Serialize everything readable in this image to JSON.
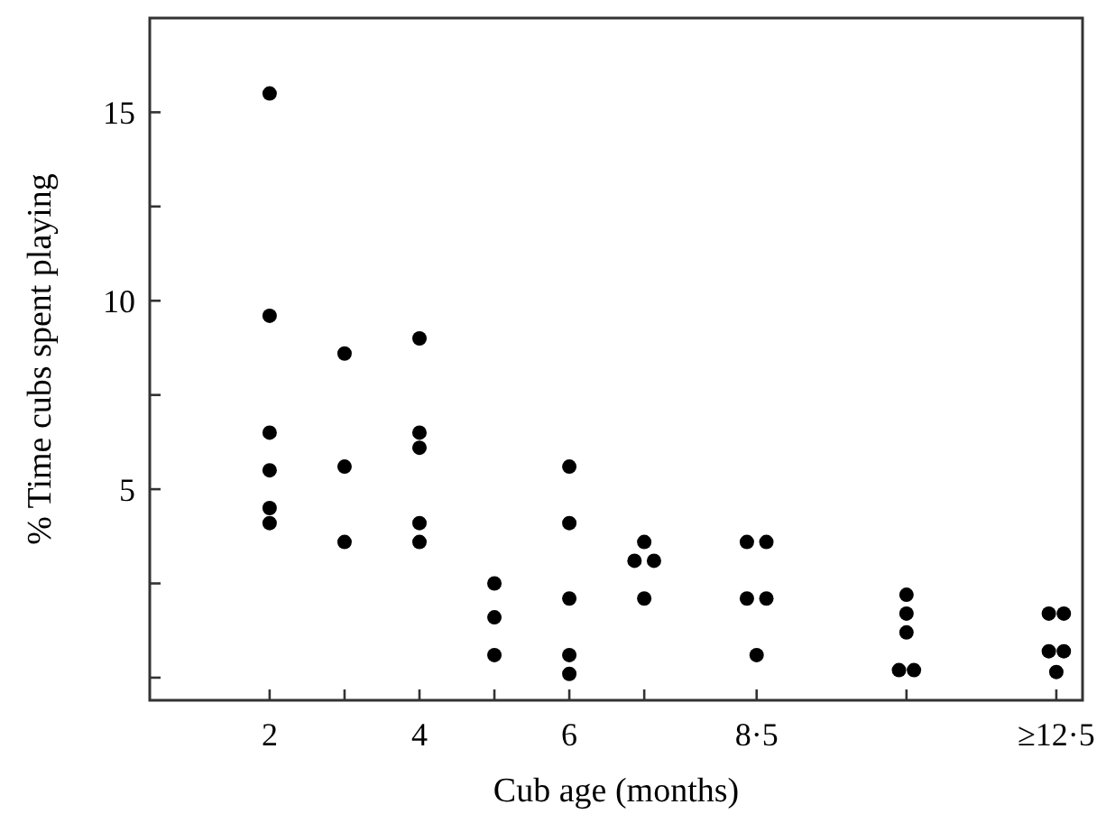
{
  "chart_data": {
    "type": "scatter",
    "xlabel": "Cub age (months)",
    "ylabel": "% Time cubs spent playing",
    "x": [
      2,
      2,
      2,
      2,
      2,
      2,
      3,
      3,
      3,
      4,
      4,
      4,
      4,
      4,
      5,
      5,
      5,
      6,
      6,
      6,
      6,
      6,
      7,
      6.87,
      7.13,
      7,
      8.37,
      8.63,
      8.37,
      8.63,
      8.5,
      10.5,
      10.5,
      10.5,
      10.4,
      10.6,
      12.4,
      12.6,
      12.4,
      12.6,
      12.5
    ],
    "values": [
      15.5,
      9.6,
      6.5,
      5.5,
      4.5,
      4.1,
      8.6,
      5.6,
      3.6,
      9.0,
      6.5,
      6.1,
      4.1,
      3.6,
      2.5,
      1.6,
      0.6,
      5.6,
      4.1,
      2.1,
      0.6,
      0.1,
      3.6,
      3.1,
      3.1,
      2.1,
      3.6,
      3.6,
      2.1,
      2.1,
      0.6,
      2.2,
      1.7,
      1.2,
      0.2,
      0.2,
      1.7,
      1.7,
      0.7,
      0.7,
      0.15
    ],
    "color": "#000000",
    "marker": "circle",
    "xlim": [
      0.4,
      12.85
    ],
    "ylim": [
      -0.6,
      17.5
    ],
    "xticks": [
      2,
      {
        "value": 3,
        "label": null
      },
      4,
      {
        "value": 5,
        "label": null
      },
      6,
      {
        "value": 7,
        "label": null
      },
      {
        "value": 8.5,
        "label": "8·5"
      },
      {
        "value": 10.5,
        "label": null
      },
      {
        "value": 12.5,
        "label": "≥12·5"
      }
    ],
    "yticks": [
      {
        "value": 0,
        "label": null
      },
      {
        "value": 2.5,
        "label": null
      },
      5,
      {
        "value": 7.5,
        "label": null
      },
      10,
      {
        "value": 12.5,
        "label": null
      },
      15
    ],
    "grid": false
  }
}
